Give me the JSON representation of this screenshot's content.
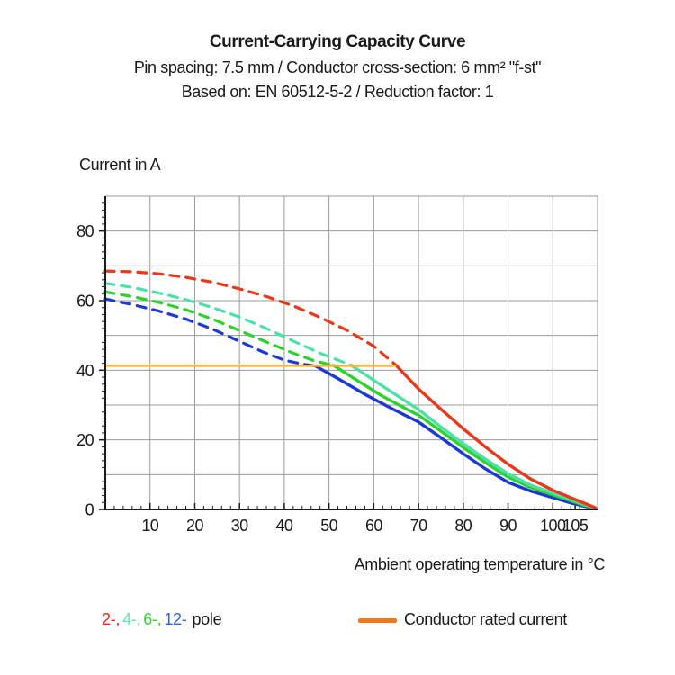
{
  "chart_data": {
    "type": "line",
    "title": "Current-Carrying Capacity Curve",
    "subtitle1": "Pin spacing: 7.5 mm / Conductor cross-section: 6 mm² \"f-st\"",
    "subtitle2": "Based on: EN 60512-5-2 / Reduction factor: 1",
    "ylabel": "Current in A",
    "xlabel": "Ambient operating temperature in °C",
    "xlim": [
      0,
      110
    ],
    "ylim": [
      0,
      90
    ],
    "x_tick_labels": [
      10,
      20,
      30,
      40,
      50,
      60,
      70,
      80,
      90,
      100,
      105
    ],
    "y_tick_labels": [
      0,
      20,
      40,
      60,
      80
    ],
    "grid_step": 10,
    "minor_tick_step": 2,
    "grid_on": true,
    "grid_color": "#9a9a9a",
    "axis_color": "#1a1a1a",
    "rated_current_line": {
      "label": "Conductor rated current",
      "value": 41.3,
      "x_start": 0,
      "x_end": 65,
      "color": "#FFB13D"
    },
    "series": [
      {
        "name": "2-pole",
        "color": "#E8391B",
        "dashed": [
          [
            0,
            68.5
          ],
          [
            6,
            68.3
          ],
          [
            12,
            67.7
          ],
          [
            18,
            66.7
          ],
          [
            24,
            65.3
          ],
          [
            30,
            63.4
          ],
          [
            36,
            61.2
          ],
          [
            42,
            58.5
          ],
          [
            48,
            55.2
          ],
          [
            54,
            51.5
          ],
          [
            60,
            46.9
          ],
          [
            65,
            41.4
          ]
        ],
        "solid": [
          [
            65,
            41.4
          ],
          [
            70,
            34.6
          ],
          [
            75,
            28.8
          ],
          [
            80,
            23.2
          ],
          [
            85,
            17.9
          ],
          [
            90,
            13.0
          ],
          [
            95,
            8.8
          ],
          [
            100,
            5.5
          ],
          [
            104,
            3.4
          ],
          [
            107,
            1.8
          ],
          [
            109.5,
            0.5
          ]
        ]
      },
      {
        "name": "4-pole",
        "color": "#4FE0A8",
        "dashed": [
          [
            0,
            65.0
          ],
          [
            6,
            63.8
          ],
          [
            12,
            62.2
          ],
          [
            18,
            60.3
          ],
          [
            24,
            58.0
          ],
          [
            30,
            55.3
          ],
          [
            36,
            52.0
          ],
          [
            42,
            48.4
          ],
          [
            48,
            44.9
          ],
          [
            52,
            42.9
          ],
          [
            55,
            41.4
          ]
        ],
        "solid": [
          [
            55,
            41.4
          ],
          [
            60,
            37.1
          ],
          [
            65,
            32.9
          ],
          [
            70,
            28.7
          ],
          [
            75,
            23.7
          ],
          [
            80,
            18.9
          ],
          [
            85,
            14.4
          ],
          [
            90,
            10.3
          ],
          [
            95,
            7.0
          ],
          [
            100,
            4.7
          ],
          [
            104,
            2.9
          ],
          [
            107,
            1.5
          ],
          [
            109.5,
            0.5
          ]
        ]
      },
      {
        "name": "6-pole",
        "color": "#2ED22E",
        "dashed": [
          [
            0,
            62.5
          ],
          [
            6,
            61.2
          ],
          [
            12,
            59.5
          ],
          [
            18,
            57.4
          ],
          [
            24,
            54.7
          ],
          [
            30,
            51.4
          ],
          [
            36,
            48.1
          ],
          [
            42,
            44.9
          ],
          [
            47,
            42.6
          ],
          [
            51,
            41.4
          ]
        ],
        "solid": [
          [
            51,
            41.4
          ],
          [
            56,
            37.3
          ],
          [
            62,
            32.5
          ],
          [
            68,
            28.4
          ],
          [
            70,
            27.1
          ],
          [
            75,
            22.5
          ],
          [
            80,
            17.8
          ],
          [
            85,
            13.4
          ],
          [
            90,
            9.3
          ],
          [
            95,
            6.3
          ],
          [
            100,
            4.2
          ],
          [
            104,
            2.5
          ],
          [
            107,
            1.2
          ],
          [
            109.5,
            0.4
          ]
        ]
      },
      {
        "name": "12-pole",
        "color": "#1C39D6",
        "dashed": [
          [
            0,
            60.5
          ],
          [
            6,
            58.9
          ],
          [
            12,
            57.0
          ],
          [
            18,
            54.7
          ],
          [
            24,
            51.8
          ],
          [
            30,
            48.3
          ],
          [
            35,
            45.4
          ],
          [
            40,
            42.9
          ],
          [
            44,
            41.8
          ],
          [
            47,
            41.2
          ]
        ],
        "solid": [
          [
            47,
            41.2
          ],
          [
            52,
            37.6
          ],
          [
            58,
            33.1
          ],
          [
            64,
            29.0
          ],
          [
            70,
            25.1
          ],
          [
            75,
            20.6
          ],
          [
            80,
            16.0
          ],
          [
            85,
            11.6
          ],
          [
            90,
            7.8
          ],
          [
            95,
            5.3
          ],
          [
            100,
            3.4
          ],
          [
            104,
            1.9
          ],
          [
            107,
            0.9
          ],
          [
            109.5,
            0.3
          ]
        ]
      }
    ]
  },
  "legend": {
    "pole_items": [
      {
        "text": "2-,",
        "color": "#F5281E"
      },
      {
        "text": "4-,",
        "color": "#63E6B4"
      },
      {
        "text": "6-,",
        "color": "#2EDC2E"
      },
      {
        "text": "12-",
        "color": "#2F62E8"
      }
    ],
    "pole_suffix": "pole",
    "rated": {
      "label": "Conductor rated current",
      "swatch_color": "#F0781E"
    }
  }
}
